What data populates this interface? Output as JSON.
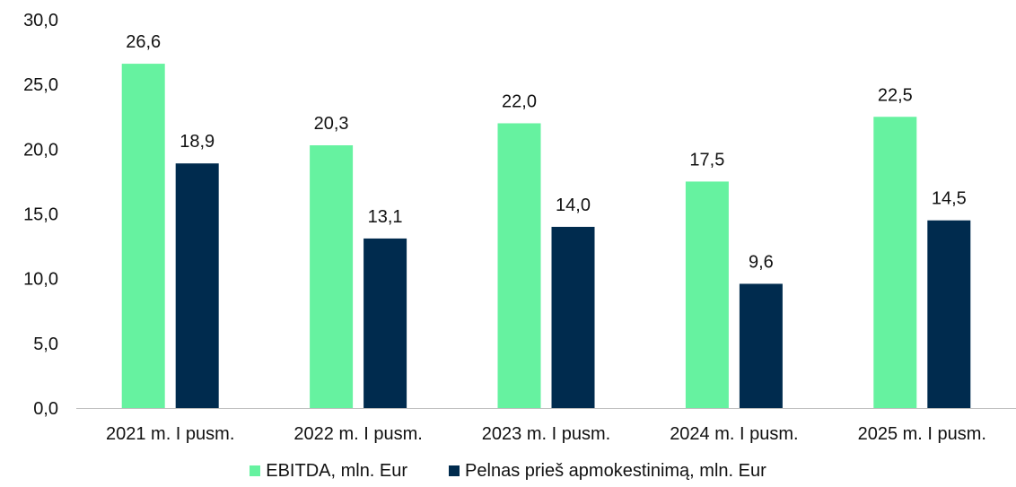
{
  "chart_data": {
    "type": "bar",
    "categories": [
      "2021 m. I pusm.",
      "2022 m. I pusm.",
      "2023 m. I pusm.",
      "2024 m. I pusm.",
      "2025 m. I pusm."
    ],
    "series": [
      {
        "name": "EBITDA, mln. Eur",
        "values": [
          26.6,
          20.3,
          22.0,
          17.5,
          22.5
        ],
        "color": "#66F2A0"
      },
      {
        "name": "Pelnas prieš apmokestinimą, mln. Eur",
        "values": [
          18.9,
          13.1,
          14.0,
          9.6,
          14.5
        ],
        "color": "#002B4E"
      }
    ],
    "ylim": [
      0,
      30
    ],
    "yticks": [
      "0,0",
      "5,0",
      "10,0",
      "15,0",
      "20,0",
      "25,0",
      "30,0"
    ],
    "data_labels": [
      [
        "26,6",
        "20,3",
        "22,0",
        "17,5",
        "22,5"
      ],
      [
        "18,9",
        "13,1",
        "14,0",
        "9,6",
        "14,5"
      ]
    ],
    "grid": false,
    "legend_position": "bottom"
  }
}
